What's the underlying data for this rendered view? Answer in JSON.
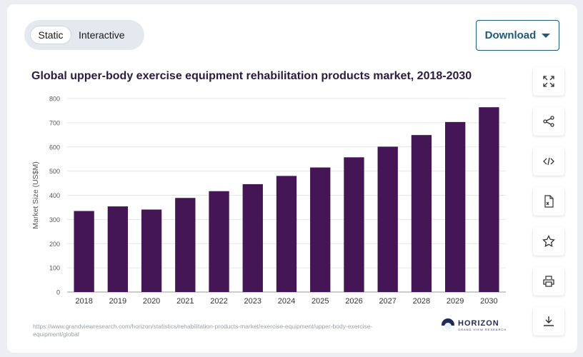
{
  "toggle": {
    "static_label": "Static",
    "interactive_label": "Interactive",
    "selected": "Static"
  },
  "download": {
    "label": "Download"
  },
  "tools": [
    {
      "name": "fullscreen-icon"
    },
    {
      "name": "share-icon"
    },
    {
      "name": "embed-icon"
    },
    {
      "name": "xls-icon"
    },
    {
      "name": "star-icon"
    },
    {
      "name": "print-icon"
    },
    {
      "name": "download-icon"
    }
  ],
  "source_url": "https://www.grandviewresearch.com/horizon/statistics/rehabilitation-products-market/exercise-equipment/upper-body-exercise-equipment/global",
  "logo": {
    "name": "HORIZON",
    "sub": "GRAND VIEW RESEARCH"
  },
  "colors": {
    "bar": "#451656",
    "grid": "#e6e6e6",
    "accent": "#1e5a7d"
  },
  "chart_data": {
    "type": "bar",
    "title": "Global upper-body exercise equipment rehabilitation products market, 2018-2030",
    "xlabel": "",
    "ylabel": "Market Size (US$M)",
    "categories": [
      "2018",
      "2019",
      "2020",
      "2021",
      "2022",
      "2023",
      "2024",
      "2025",
      "2026",
      "2027",
      "2028",
      "2029",
      "2030"
    ],
    "values": [
      335,
      354,
      341,
      389,
      417,
      446,
      480,
      515,
      557,
      601,
      649,
      703,
      764
    ],
    "ylim": [
      0,
      800
    ],
    "yticks": [
      0,
      100,
      200,
      300,
      400,
      500,
      600,
      700,
      800
    ],
    "grid": true,
    "legend": "none"
  }
}
